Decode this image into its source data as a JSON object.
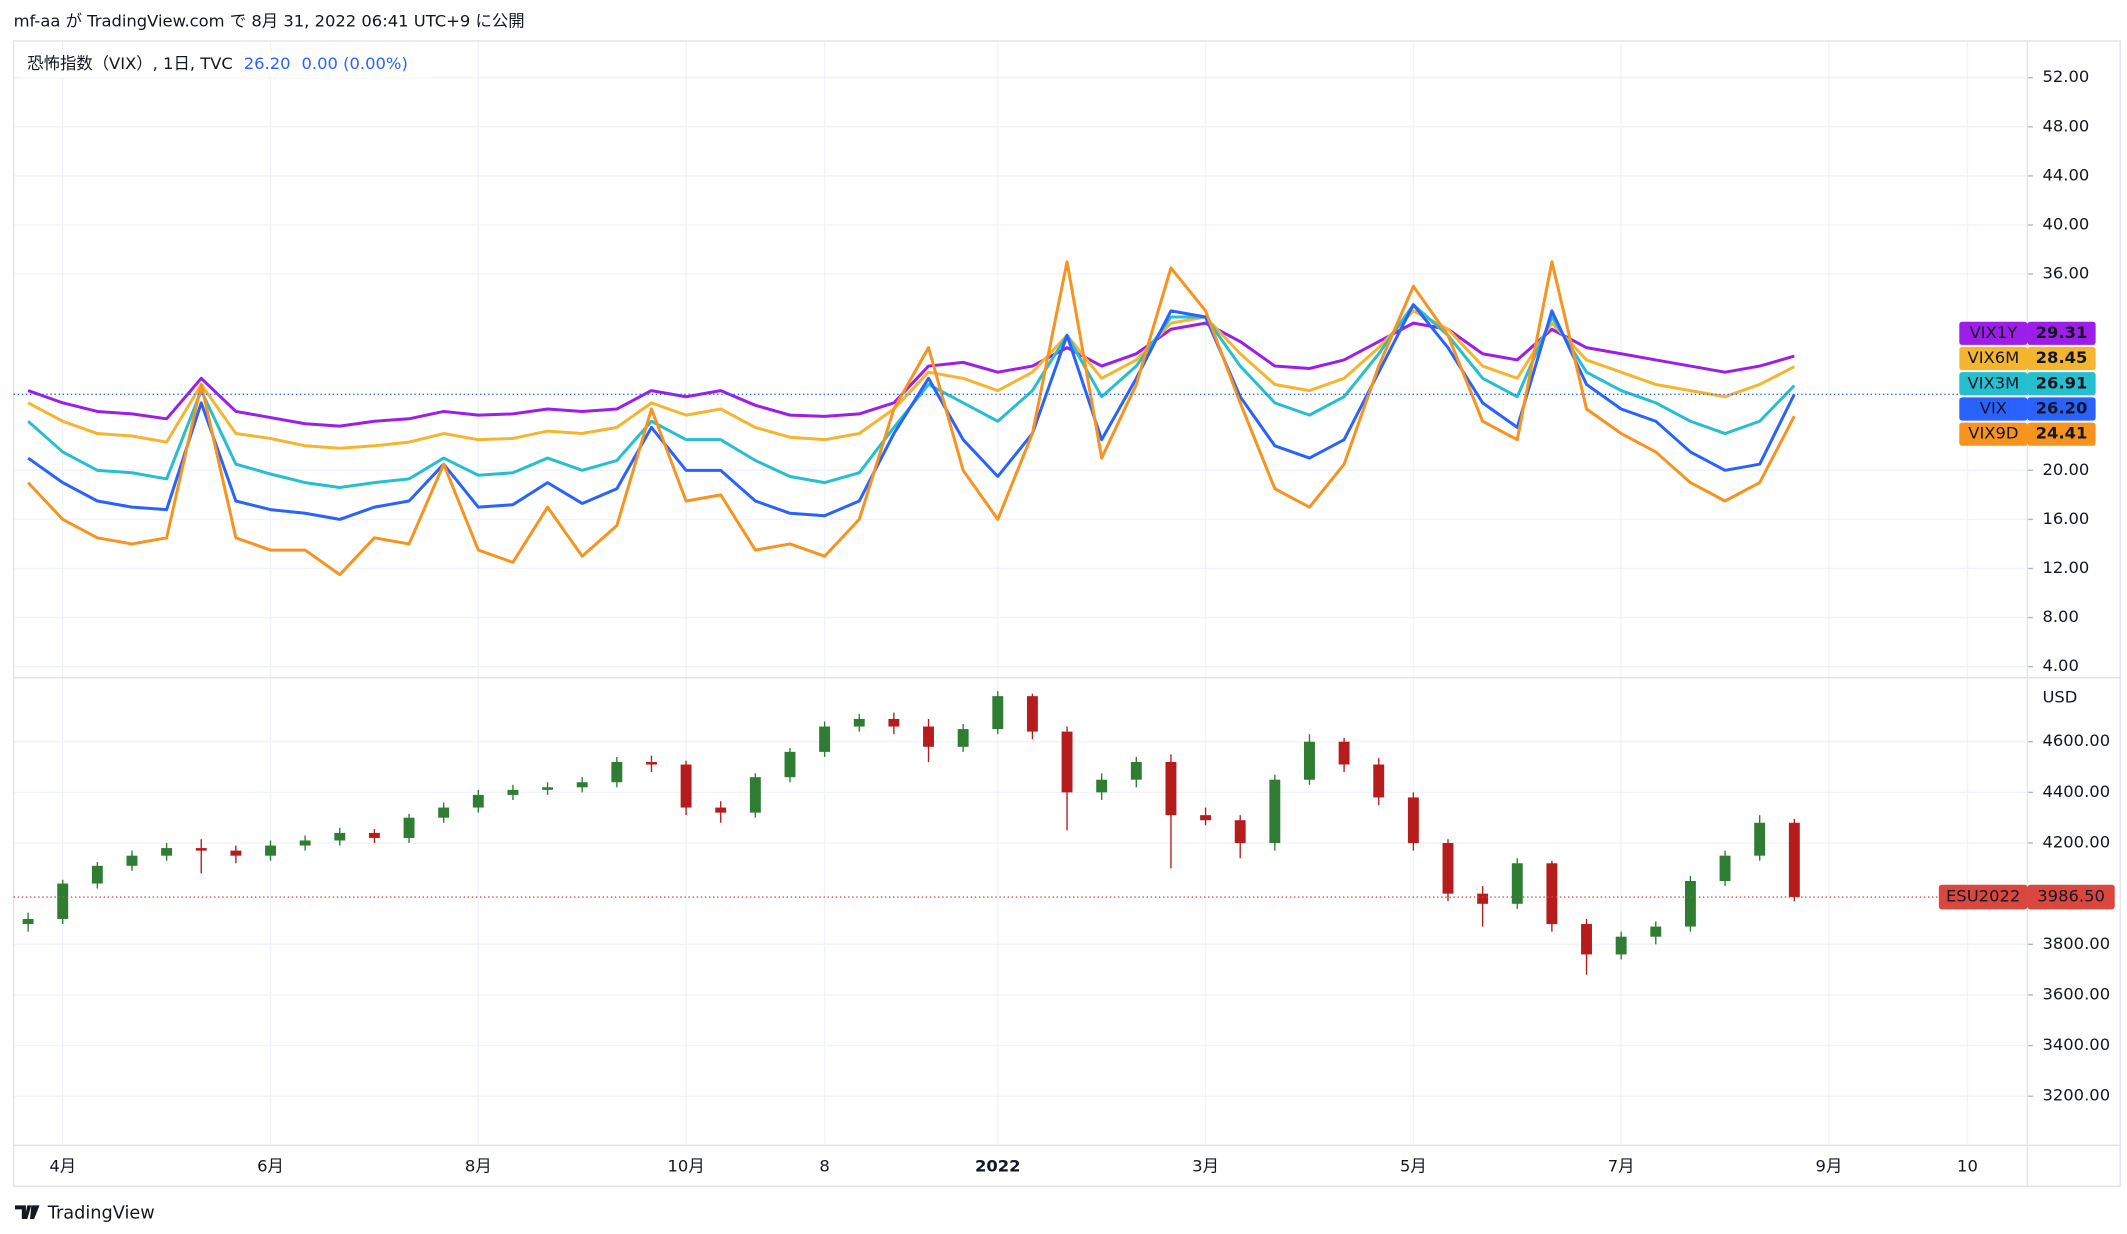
{
  "header": {
    "publish": "mf-aa が TradingView.com で 8月 31, 2022 06:41 UTC+9 に公開"
  },
  "footer": {
    "brand": "TradingView"
  },
  "chart_data": [
    {
      "type": "line",
      "title": "恐怖指数（VIX）, 1日, TVC",
      "last_label": "26.20",
      "change_label": "0.00 (0.00%)",
      "categories": [
        null,
        "4月",
        null,
        null,
        null,
        null,
        null,
        "6月",
        null,
        null,
        null,
        null,
        null,
        "8月",
        null,
        null,
        null,
        null,
        null,
        "10月",
        null,
        null,
        null,
        "8",
        null,
        null,
        null,
        null,
        "2022",
        null,
        null,
        null,
        null,
        null,
        "3月",
        null,
        null,
        null,
        null,
        null,
        "5月",
        null,
        null,
        null,
        null,
        null,
        "7月",
        null,
        null,
        null,
        null,
        null,
        "9月",
        null,
        null,
        null,
        "10"
      ],
      "series": [
        {
          "name": "VIX1Y",
          "color": "#9c1ee8",
          "last_label": "29.31",
          "values": [
            26.5,
            25.5,
            24.8,
            24.6,
            24.2,
            27.5,
            24.8,
            24.3,
            23.8,
            23.6,
            24.0,
            24.2,
            24.8,
            24.5,
            24.6,
            25.0,
            24.8,
            25.0,
            26.5,
            26.0,
            26.5,
            25.3,
            24.5,
            24.4,
            24.6,
            25.5,
            28.5,
            28.8,
            28.0,
            28.5,
            30.0,
            28.5,
            29.5,
            31.5,
            32.0,
            30.5,
            28.5,
            28.3,
            29.0,
            30.5,
            32.0,
            31.5,
            29.5,
            29.0,
            31.5,
            30.0,
            29.5,
            29.0,
            28.5,
            28.0,
            28.5,
            29.31,
            null,
            null,
            null,
            null,
            null
          ]
        },
        {
          "name": "VIX6M",
          "color": "#f5b52e",
          "last_label": "28.45",
          "values": [
            25.5,
            24.0,
            23.0,
            22.8,
            22.3,
            27.0,
            23.0,
            22.6,
            22.0,
            21.8,
            22.0,
            22.3,
            23.0,
            22.5,
            22.6,
            23.2,
            23.0,
            23.5,
            25.5,
            24.5,
            25.0,
            23.5,
            22.7,
            22.5,
            23.0,
            25.0,
            28.0,
            27.5,
            26.5,
            28.0,
            31.0,
            27.5,
            29.0,
            32.0,
            32.5,
            29.5,
            27.0,
            26.5,
            27.5,
            30.0,
            33.0,
            31.5,
            28.5,
            27.5,
            32.0,
            29.0,
            28.0,
            27.0,
            26.5,
            26.0,
            27.0,
            28.45,
            null,
            null,
            null,
            null,
            null
          ]
        },
        {
          "name": "VIX3M",
          "color": "#26bfcf",
          "last_label": "26.91",
          "values": [
            24.0,
            21.5,
            20.0,
            19.8,
            19.3,
            26.5,
            20.5,
            19.7,
            19.0,
            18.6,
            19.0,
            19.3,
            21.0,
            19.6,
            19.8,
            21.0,
            20.0,
            20.8,
            24.0,
            22.5,
            22.5,
            20.8,
            19.5,
            19.0,
            19.8,
            23.5,
            27.0,
            25.5,
            24.0,
            26.5,
            31.0,
            26.0,
            28.5,
            32.5,
            32.5,
            28.5,
            25.5,
            24.5,
            26.0,
            29.5,
            33.5,
            31.0,
            27.5,
            26.0,
            32.5,
            28.0,
            26.5,
            25.5,
            24.0,
            23.0,
            24.0,
            26.91,
            null,
            null,
            null,
            null,
            null
          ]
        },
        {
          "name": "VIX",
          "color": "#2962ff",
          "last_label": "26.20",
          "values": [
            21.0,
            19.0,
            17.5,
            17.0,
            16.8,
            25.5,
            17.5,
            16.8,
            16.5,
            16.0,
            17.0,
            17.5,
            20.5,
            17.0,
            17.2,
            19.0,
            17.3,
            18.5,
            23.5,
            20.0,
            20.0,
            17.5,
            16.5,
            16.3,
            17.5,
            23.0,
            27.5,
            22.5,
            19.5,
            23.0,
            31.0,
            22.5,
            27.5,
            33.0,
            32.5,
            26.0,
            22.0,
            21.0,
            22.5,
            28.0,
            33.5,
            30.0,
            25.5,
            23.5,
            33.0,
            27.0,
            25.0,
            24.0,
            21.5,
            20.0,
            20.5,
            26.2,
            null,
            null,
            null,
            null,
            null
          ]
        },
        {
          "name": "VIX9D",
          "color": "#f7931e",
          "last_label": "24.41",
          "values": [
            19.0,
            16.0,
            14.5,
            14.0,
            14.5,
            27.0,
            14.5,
            13.5,
            13.5,
            11.5,
            14.5,
            14.0,
            20.5,
            13.5,
            12.5,
            17.0,
            13.0,
            15.5,
            25.0,
            17.5,
            18.0,
            13.5,
            14.0,
            13.0,
            16.0,
            25.0,
            30.0,
            20.0,
            16.0,
            23.0,
            37.0,
            21.0,
            27.0,
            36.5,
            33.0,
            25.5,
            18.5,
            17.0,
            20.5,
            28.5,
            35.0,
            31.0,
            24.0,
            22.5,
            37.0,
            25.0,
            23.0,
            21.5,
            19.0,
            17.5,
            19.0,
            24.41,
            null,
            null,
            null,
            null,
            null
          ]
        }
      ],
      "ylim": [
        3.1,
        55
      ],
      "yticks": [
        {
          "value": 52,
          "label": "52.00"
        },
        {
          "value": 48,
          "label": "48.00"
        },
        {
          "value": 44,
          "label": "44.00"
        },
        {
          "value": 40,
          "label": "40.00"
        },
        {
          "value": 36,
          "label": "36.00"
        },
        {
          "value": 20,
          "label": "20.00"
        },
        {
          "value": 16,
          "label": "16.00"
        },
        {
          "value": 12,
          "label": "12.00"
        },
        {
          "value": 8,
          "label": "8.00"
        },
        {
          "value": 4,
          "label": "4.00"
        }
      ],
      "grid": true
    },
    {
      "type": "candlestick",
      "currency": "USD",
      "series": [
        {
          "name": "ESU2022",
          "color": "#d9473f",
          "up_color": "#2e7d32",
          "down_color": "#b71c1c",
          "last_label": "3986.50",
          "open": [
            3880,
            3900,
            4040,
            4110,
            4150,
            4180,
            4170,
            4150,
            4190,
            4210,
            4240,
            4220,
            4300,
            4340,
            4390,
            4410,
            4420,
            4440,
            4520,
            4510,
            4340,
            4320,
            4460,
            4560,
            4660,
            4690,
            4660,
            4580,
            4650,
            4780,
            4640,
            4400,
            4450,
            4520,
            4310,
            4290,
            4200,
            4450,
            4600,
            4510,
            4380,
            4200,
            4000,
            3960,
            4120,
            3880,
            3760,
            3830,
            3870,
            4050,
            4150,
            4280
          ],
          "high": [
            3925,
            4055,
            4125,
            4170,
            4200,
            4215,
            4190,
            4210,
            4230,
            4260,
            4255,
            4315,
            4360,
            4410,
            4430,
            4440,
            4460,
            4540,
            4545,
            4525,
            4365,
            4475,
            4575,
            4680,
            4710,
            4715,
            4690,
            4670,
            4800,
            4790,
            4660,
            4475,
            4540,
            4550,
            4340,
            4310,
            4470,
            4630,
            4615,
            4535,
            4400,
            4215,
            4030,
            4140,
            4130,
            3900,
            3850,
            3890,
            4070,
            4170,
            4310,
            4295
          ],
          "low": [
            3850,
            3880,
            4020,
            4090,
            4130,
            4080,
            4120,
            4130,
            4170,
            4190,
            4200,
            4200,
            4280,
            4320,
            4370,
            4390,
            4400,
            4420,
            4480,
            4310,
            4280,
            4300,
            4440,
            4540,
            4640,
            4630,
            4520,
            4560,
            4630,
            4610,
            4250,
            4370,
            4420,
            4100,
            4270,
            4140,
            4170,
            4430,
            4480,
            4350,
            4170,
            3970,
            3870,
            3940,
            3850,
            3680,
            3740,
            3800,
            3850,
            4030,
            4130,
            3970
          ],
          "close": [
            3900,
            4040,
            4110,
            4150,
            4180,
            4170,
            4150,
            4190,
            4210,
            4240,
            4220,
            4300,
            4340,
            4390,
            4410,
            4420,
            4440,
            4520,
            4510,
            4340,
            4320,
            4460,
            4560,
            4660,
            4690,
            4660,
            4580,
            4650,
            4780,
            4640,
            4400,
            4450,
            4520,
            4310,
            4290,
            4200,
            4450,
            4600,
            4510,
            4380,
            4200,
            4000,
            3960,
            4120,
            3880,
            3760,
            3830,
            3870,
            4050,
            4150,
            4280,
            3986.5
          ]
        }
      ],
      "ylim": [
        3006,
        4853
      ],
      "yticks": [
        {
          "value": 4600,
          "label": "4600.00"
        },
        {
          "value": 4400,
          "label": "4400.00"
        },
        {
          "value": 4200,
          "label": "4200.00"
        },
        {
          "value": 3800,
          "label": "3800.00"
        },
        {
          "value": 3600,
          "label": "3600.00"
        },
        {
          "value": 3400,
          "label": "3400.00"
        },
        {
          "value": 3200,
          "label": "3200.00"
        }
      ],
      "grid": true
    }
  ]
}
